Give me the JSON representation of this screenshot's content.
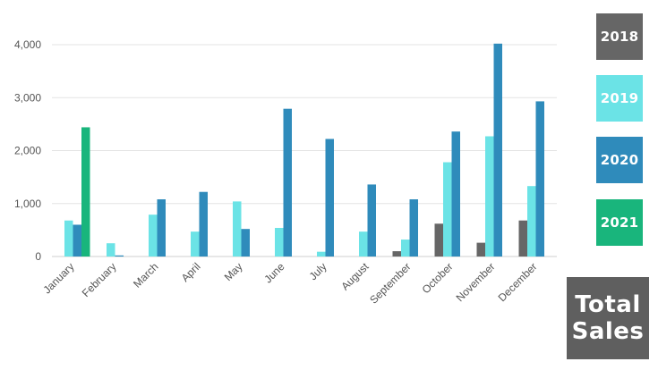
{
  "chart_data": {
    "type": "bar",
    "categories": [
      "January",
      "February",
      "March",
      "April",
      "May",
      "June",
      "July",
      "August",
      "September",
      "October",
      "November",
      "December"
    ],
    "series": [
      {
        "name": "2018",
        "color": "#666666",
        "values": [
          null,
          null,
          null,
          null,
          null,
          null,
          null,
          null,
          100,
          620,
          260,
          680
        ]
      },
      {
        "name": "2019",
        "color": "#6be3e6",
        "values": [
          680,
          250,
          790,
          470,
          1040,
          540,
          90,
          470,
          320,
          1780,
          2270,
          1330
        ]
      },
      {
        "name": "2020",
        "color": "#2f8bbb",
        "values": [
          600,
          20,
          1080,
          1220,
          520,
          2790,
          2220,
          1360,
          1080,
          2360,
          4020,
          2930
        ]
      },
      {
        "name": "2021",
        "color": "#19b57c",
        "values": [
          2440,
          null,
          null,
          null,
          null,
          null,
          null,
          null,
          null,
          null,
          null,
          null
        ]
      }
    ],
    "ylim": [
      0,
      4000
    ],
    "yticks": [
      0,
      1000,
      2000,
      3000,
      4000
    ],
    "ytick_labels": [
      "0",
      "1,000",
      "2,000",
      "3,000",
      "4,000"
    ],
    "grid": true,
    "legend_placement": "right",
    "title": "",
    "xlabel": "",
    "ylabel": ""
  },
  "legend": {
    "items": [
      {
        "label": "2018",
        "color": "#666666"
      },
      {
        "label": "2019",
        "color": "#6be3e6"
      },
      {
        "label": "2020",
        "color": "#2f8bbb"
      },
      {
        "label": "2021",
        "color": "#19b57c"
      }
    ]
  },
  "total_panel": {
    "line1": "Total",
    "line2": "Sales",
    "color": "#5f5f5f"
  }
}
